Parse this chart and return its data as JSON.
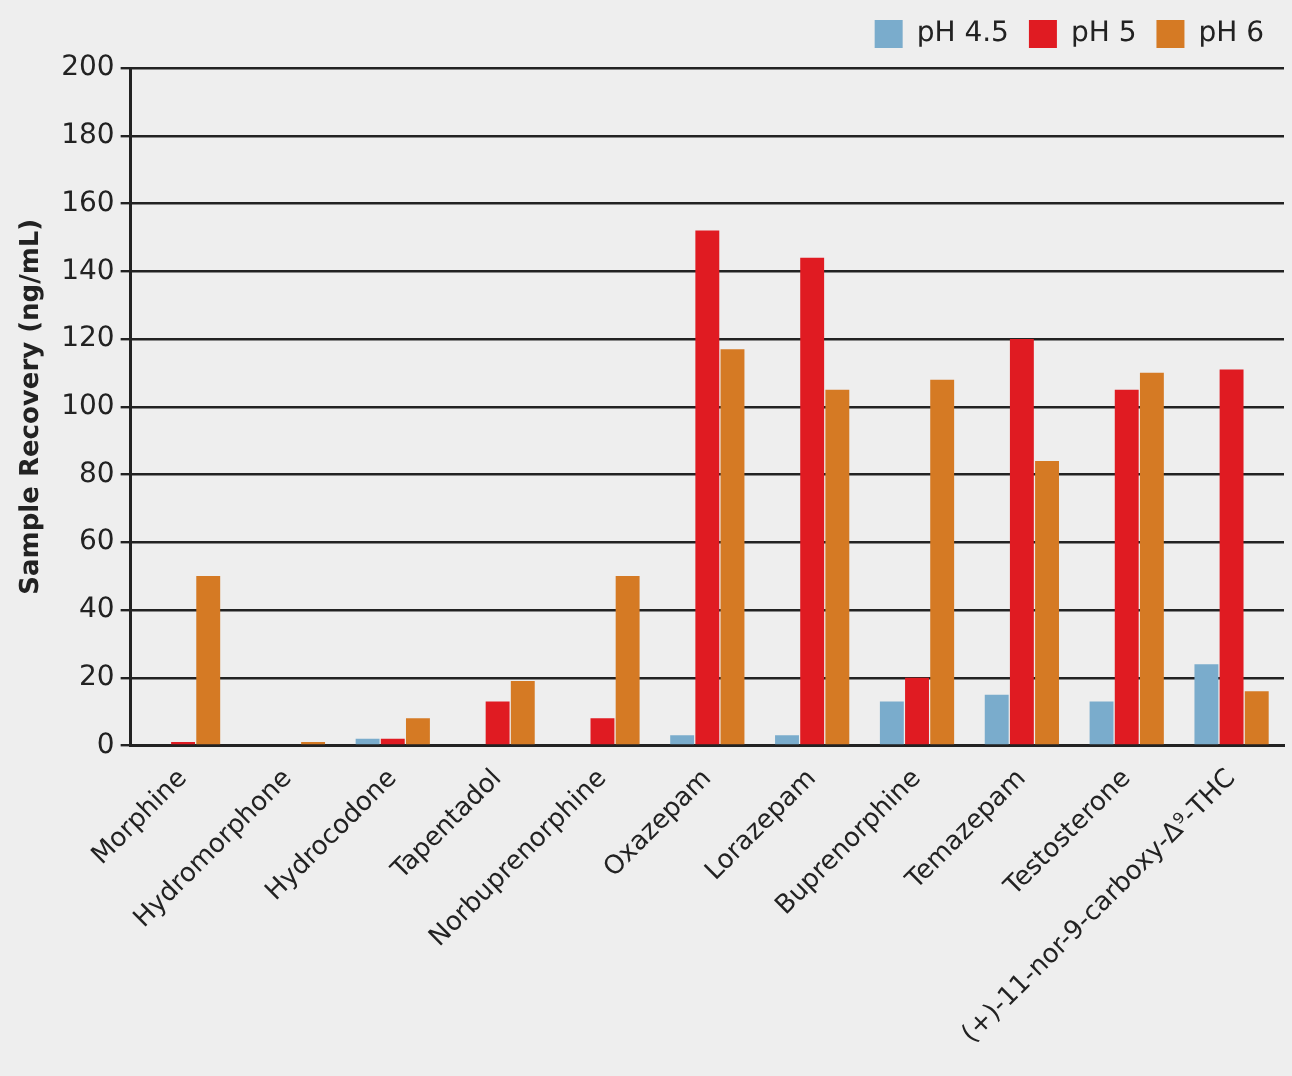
{
  "chart_data": {
    "type": "bar",
    "ylabel": "Sample Recovery (ng/mL)",
    "categories": [
      "Morphine",
      "Hydromorphone",
      "Hydrocodone",
      "Tapentadol",
      "Norbuprenorphine",
      "Oxazepam",
      "Lorazepam",
      "Buprenorphine",
      "Temazepam",
      "Testosterone",
      "(+)-11-nor-9-carboxy-Δ⁹-THC"
    ],
    "series": [
      {
        "name": "pH 4.5",
        "color": "#7aaccc",
        "values": [
          0,
          0,
          2,
          0,
          0,
          3,
          3,
          13,
          15,
          13,
          24
        ]
      },
      {
        "name": "pH 5",
        "color": "#e01b22",
        "values": [
          1,
          0,
          2,
          13,
          8,
          152,
          144,
          20,
          120,
          105,
          111
        ]
      },
      {
        "name": "pH 6",
        "color": "#d57a24",
        "values": [
          50,
          1,
          8,
          19,
          50,
          117,
          105,
          108,
          84,
          110,
          16
        ]
      }
    ],
    "ylim": [
      0,
      200
    ],
    "yticks": [
      0,
      20,
      40,
      60,
      80,
      100,
      120,
      140,
      160,
      180,
      200
    ],
    "grid": "y",
    "legend": "top right"
  }
}
